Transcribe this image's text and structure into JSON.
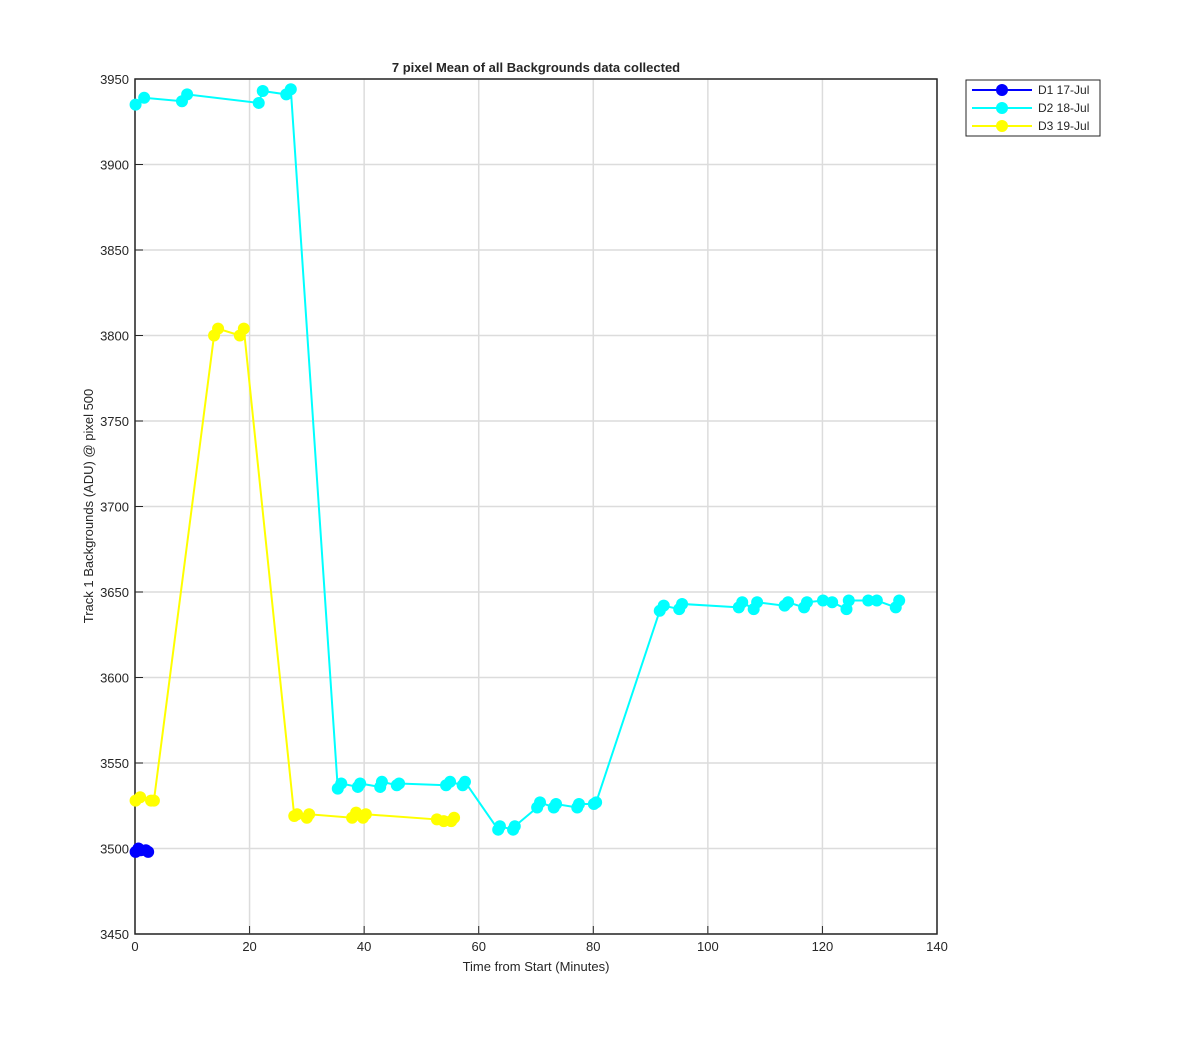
{
  "chart_data": {
    "type": "line",
    "title": "7 pixel Mean of all Backgrounds data collected",
    "x_label": "Time from Start (Minutes)",
    "y_label": "Track 1 Backgrounds (ADU) @ pixel 500",
    "xlim": [
      0,
      140
    ],
    "ylim": [
      3450,
      3950
    ],
    "xticks": [
      0,
      20,
      40,
      60,
      80,
      100,
      120,
      140
    ],
    "yticks": [
      3450,
      3500,
      3550,
      3600,
      3650,
      3700,
      3750,
      3800,
      3850,
      3900,
      3950
    ],
    "grid": true,
    "legend_position": "outside-top-right",
    "series": [
      {
        "name": "D1 17-Jul",
        "color": "#0000ff",
        "x": [
          0.1,
          0.6,
          1.0,
          1.9,
          2.3
        ],
        "values": [
          3498,
          3500,
          3499,
          3499,
          3498
        ]
      },
      {
        "name": "D2 18-Jul",
        "color": "#00ffff",
        "x": [
          0.1,
          1.6,
          8.2,
          9.1,
          21.6,
          22.3,
          26.4,
          27.2,
          35.4,
          36.0,
          38.9,
          39.3,
          42.8,
          43.1,
          45.7,
          46.1,
          54.3,
          55.0,
          57.2,
          57.6,
          63.4,
          63.7,
          66.0,
          66.3,
          70.2,
          70.7,
          73.1,
          73.5,
          77.2,
          77.5,
          80.1,
          80.5,
          91.6,
          92.3,
          95.0,
          95.5,
          105.4,
          106.0,
          108.0,
          108.6,
          113.4,
          114.0,
          116.8,
          117.3,
          120.1,
          121.7,
          124.2,
          124.6,
          128.0,
          129.5,
          132.8,
          133.4
        ],
        "values": [
          3935,
          3939,
          3937,
          3941,
          3936,
          3943,
          3941,
          3944,
          3535,
          3538,
          3536,
          3538,
          3536,
          3539,
          3537,
          3538,
          3537,
          3539,
          3537,
          3539,
          3511,
          3513,
          3511,
          3513,
          3524,
          3527,
          3524,
          3526,
          3524,
          3526,
          3526,
          3527,
          3639,
          3642,
          3640,
          3643,
          3641,
          3644,
          3640,
          3644,
          3642,
          3644,
          3641,
          3644,
          3645,
          3644,
          3640,
          3645,
          3645,
          3645,
          3641,
          3645
        ]
      },
      {
        "name": "D3 19-Jul",
        "color": "#ffff00",
        "x": [
          0.1,
          0.9,
          2.8,
          3.3,
          13.8,
          14.5,
          18.3,
          19.0,
          27.8,
          28.3,
          30.0,
          30.4,
          37.9,
          38.6,
          39.8,
          40.3,
          52.7,
          53.9,
          55.2,
          55.7
        ],
        "values": [
          3528,
          3530,
          3528,
          3528,
          3800,
          3804,
          3800,
          3804,
          3519,
          3520,
          3518,
          3520,
          3518,
          3521,
          3518,
          3520,
          3517,
          3516,
          3516,
          3518
        ]
      }
    ]
  }
}
